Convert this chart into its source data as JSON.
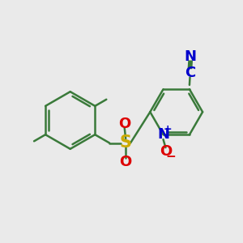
{
  "bg_color": "#eaeaea",
  "bond_color": "#3a7a3a",
  "bond_width": 1.8,
  "atom_colors": {
    "C": "#0000cc",
    "N_nitrile": "#0000cc",
    "S": "#ccaa00",
    "O": "#dd0000",
    "N_plus": "#0000cc",
    "O_minus": "#dd0000"
  },
  "font_size_atom": 13,
  "font_size_charge": 9
}
